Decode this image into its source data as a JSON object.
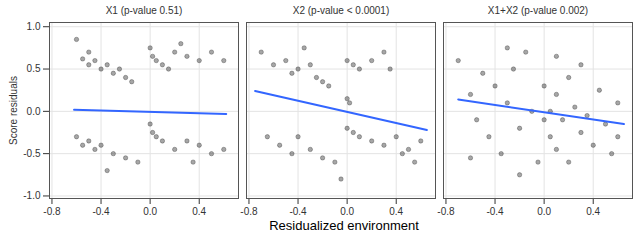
{
  "chart_data": {
    "type": "scatter",
    "x_label": "Residualized environment",
    "y_label": "Score residuals",
    "xlim": [
      -0.82,
      0.72
    ],
    "ylim": [
      -1.03,
      1.05
    ],
    "xticks": [
      {
        "value": -0.8,
        "label": "-0.8"
      },
      {
        "value": -0.4,
        "label": "-0.4"
      },
      {
        "value": 0,
        "label": "0.0"
      },
      {
        "value": 0.4,
        "label": "0.4"
      }
    ],
    "yticks": [
      {
        "value": -1,
        "label": "-1.0"
      },
      {
        "value": -0.5,
        "label": "-0.5"
      },
      {
        "value": 0,
        "label": "0.0"
      },
      {
        "value": 0.5,
        "label": "0.5"
      },
      {
        "value": 1,
        "label": "1.0"
      }
    ],
    "grid": true,
    "series": [
      {
        "name": "X1 (p-value 0.51)",
        "color": "#000000",
        "x": [
          -0.6,
          -0.55,
          -0.5,
          -0.45,
          -0.4,
          -0.35,
          -0.3,
          -0.25,
          -0.2,
          -0.15,
          0.0,
          0.02,
          0.05,
          0.1,
          0.15,
          0.2,
          0.3,
          0.4,
          0.5,
          0.6,
          0.25,
          -0.5,
          -0.6,
          -0.55,
          -0.5,
          -0.45,
          -0.4,
          -0.3,
          -0.2,
          -0.1,
          0.0,
          0.02,
          0.05,
          0.1,
          0.2,
          0.3,
          0.4,
          0.5,
          0.6,
          0.35,
          -0.35
        ],
        "values": [
          0.85,
          0.62,
          0.55,
          0.6,
          0.5,
          0.55,
          0.45,
          0.5,
          0.4,
          0.35,
          0.75,
          0.65,
          0.6,
          0.55,
          0.5,
          0.7,
          0.65,
          0.6,
          0.7,
          0.6,
          0.8,
          0.7,
          -0.3,
          -0.4,
          -0.35,
          -0.45,
          -0.4,
          -0.5,
          -0.55,
          -0.6,
          -0.15,
          -0.25,
          -0.3,
          -0.35,
          -0.45,
          -0.35,
          -0.4,
          -0.5,
          -0.45,
          -0.6,
          -0.7
        ],
        "fit": {
          "color": "#3366ff",
          "x": [
            -0.62,
            0.62
          ],
          "values": [
            0.02,
            -0.03
          ]
        }
      },
      {
        "name": "X2 (p-value < 0.0001)",
        "color": "#000000",
        "x": [
          -0.7,
          -0.6,
          -0.5,
          -0.45,
          -0.4,
          -0.3,
          -0.25,
          -0.2,
          -0.15,
          0.0,
          0.05,
          0.1,
          0.2,
          0.3,
          0.35,
          -0.35,
          0.0,
          0.02,
          -0.65,
          -0.55,
          -0.45,
          -0.4,
          -0.3,
          -0.2,
          -0.1,
          0.0,
          0.05,
          0.1,
          0.2,
          0.3,
          0.4,
          0.45,
          0.5,
          0.6,
          0.55,
          -0.05
        ],
        "values": [
          0.7,
          0.55,
          0.6,
          0.45,
          0.5,
          0.55,
          0.4,
          0.35,
          0.3,
          0.6,
          0.55,
          0.5,
          0.6,
          0.7,
          0.5,
          0.75,
          0.15,
          0.1,
          -0.3,
          -0.4,
          -0.5,
          -0.3,
          -0.45,
          -0.55,
          -0.6,
          -0.2,
          -0.25,
          -0.3,
          -0.35,
          -0.4,
          -0.3,
          -0.5,
          -0.45,
          -0.35,
          -0.6,
          -0.8
        ],
        "fit": {
          "color": "#3366ff",
          "x": [
            -0.75,
            0.65
          ],
          "values": [
            0.24,
            -0.22
          ]
        }
      },
      {
        "name": "X1+X2 (p-value 0.002)",
        "color": "#000000",
        "x": [
          -0.7,
          -0.6,
          -0.55,
          -0.5,
          -0.45,
          -0.4,
          -0.35,
          -0.3,
          -0.25,
          -0.2,
          -0.15,
          -0.1,
          -0.05,
          0.0,
          0.0,
          0.05,
          0.05,
          0.1,
          0.1,
          0.15,
          0.2,
          0.2,
          0.25,
          0.3,
          0.3,
          0.35,
          0.4,
          0.45,
          0.5,
          0.55,
          0.6,
          0.6,
          -0.6,
          -0.3,
          0.1,
          -0.2
        ],
        "values": [
          0.6,
          0.2,
          -0.1,
          0.45,
          -0.3,
          0.3,
          -0.5,
          0.1,
          0.5,
          -0.2,
          0.7,
          0.0,
          -0.6,
          0.3,
          -0.1,
          0.0,
          -0.3,
          0.2,
          -0.45,
          -0.1,
          0.4,
          -0.6,
          0.05,
          -0.25,
          0.55,
          -0.05,
          -0.4,
          0.25,
          -0.15,
          -0.5,
          0.1,
          -0.3,
          -0.55,
          0.75,
          0.65,
          -0.75
        ],
        "fit": {
          "color": "#3366ff",
          "x": [
            -0.7,
            0.65
          ],
          "values": [
            0.14,
            -0.15
          ]
        }
      }
    ]
  }
}
